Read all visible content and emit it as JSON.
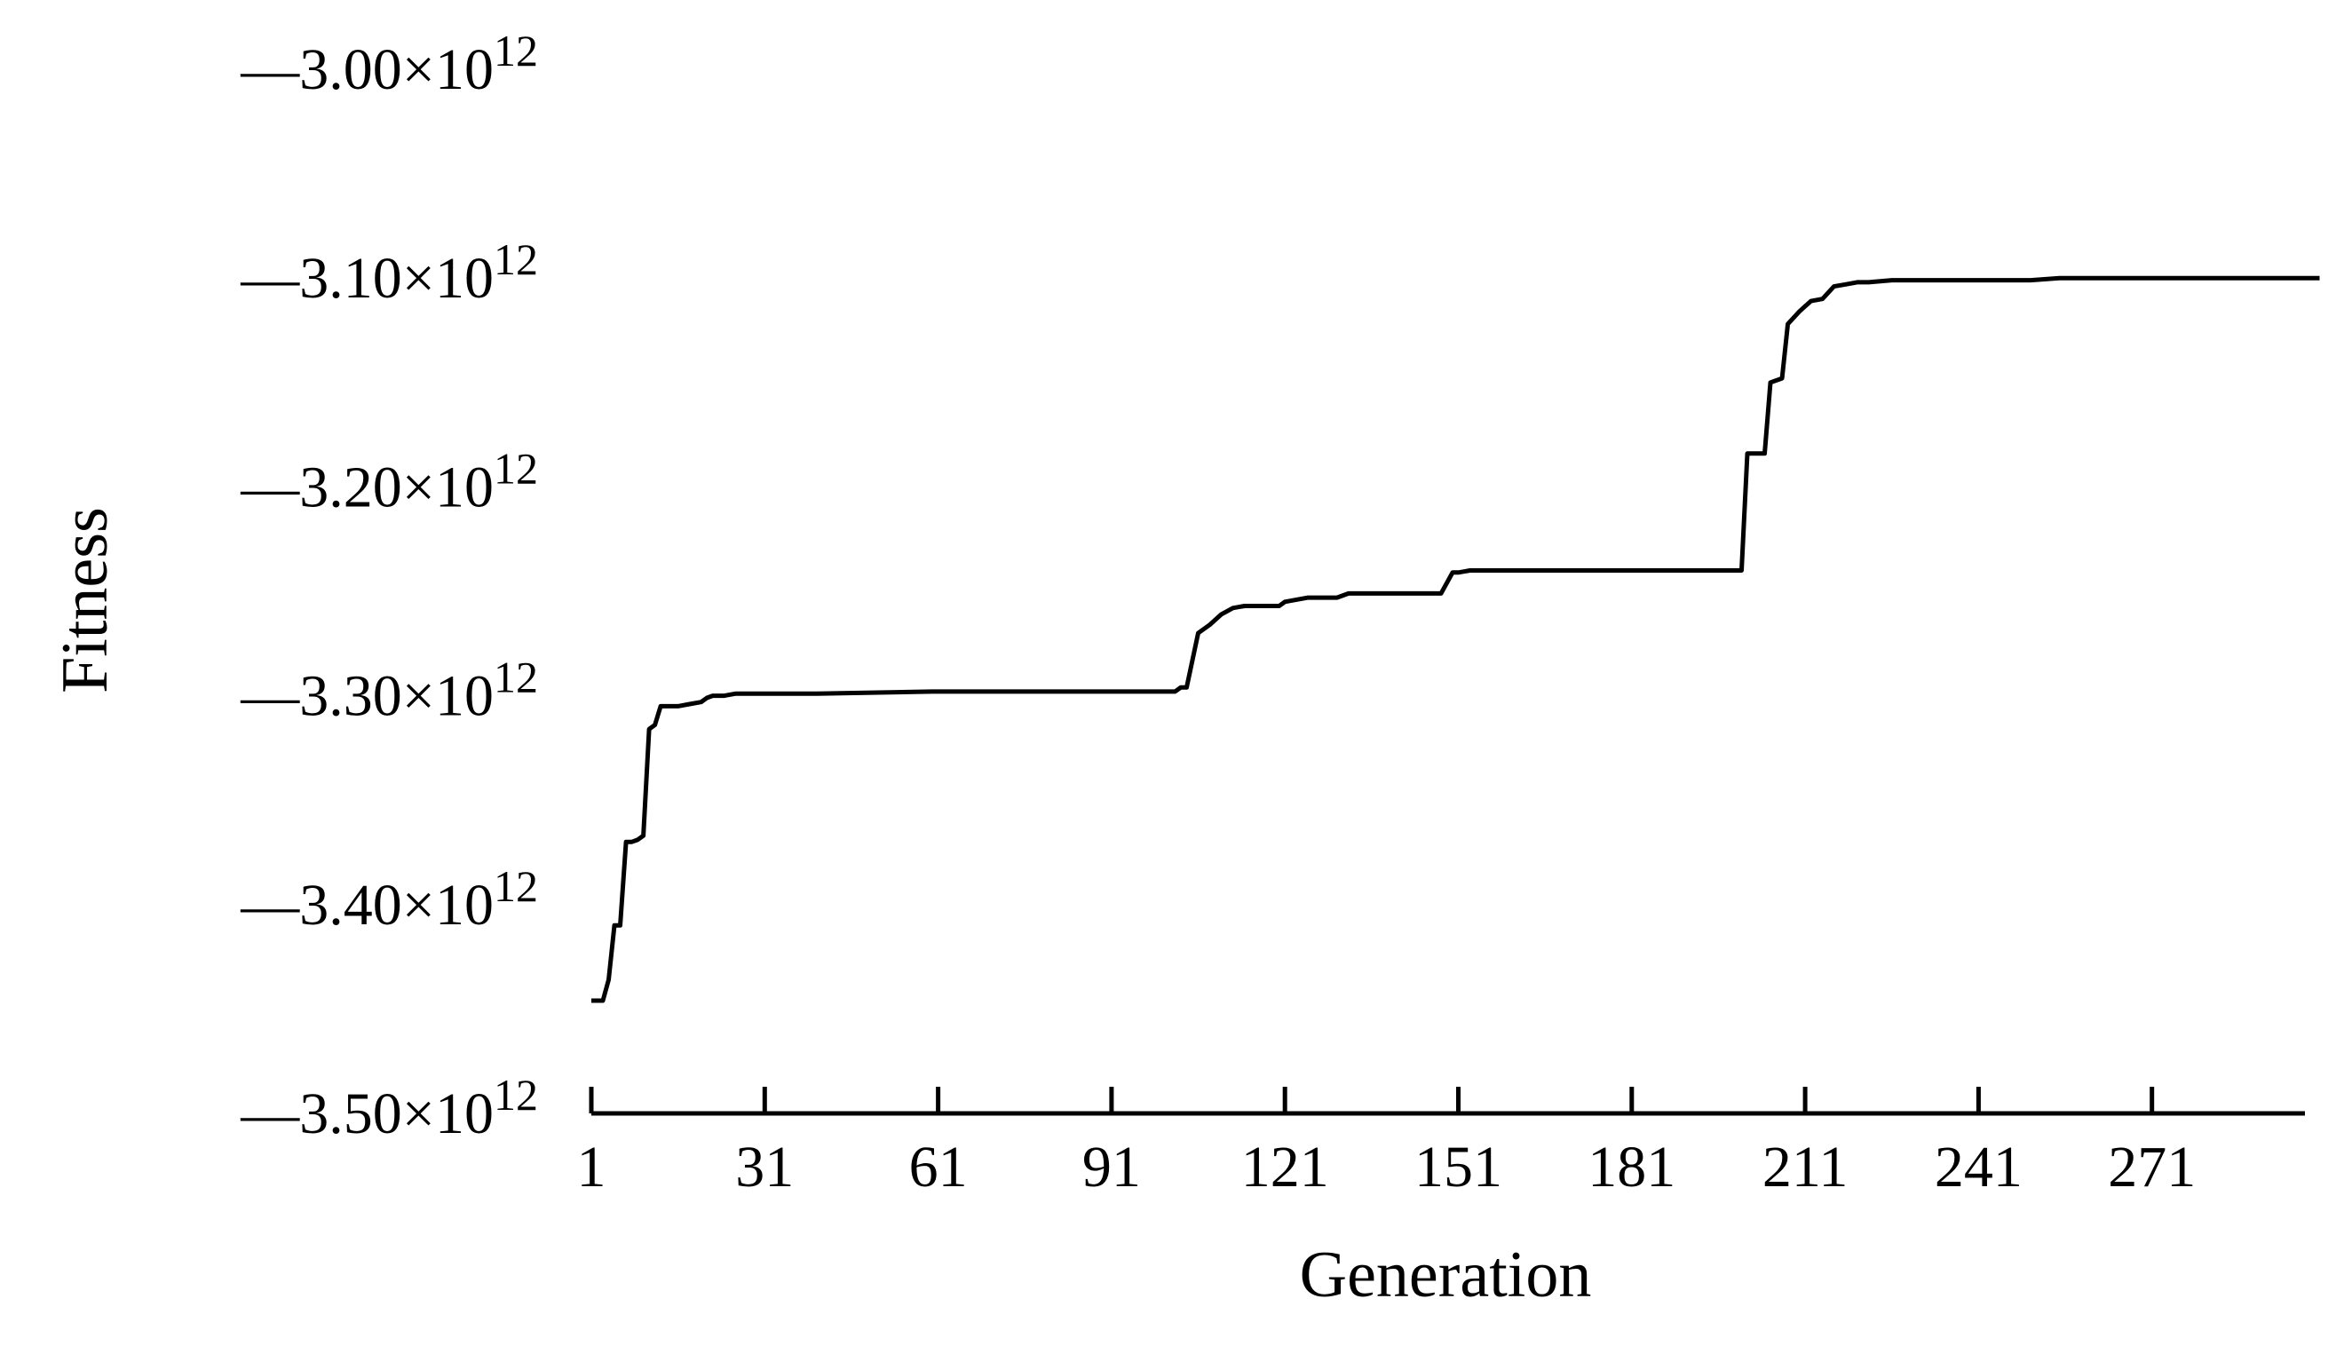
{
  "chart_data": {
    "type": "line",
    "title": "",
    "xlabel": "Generation",
    "ylabel": "Fitness",
    "x_ticks": [
      "1",
      "31",
      "61",
      "91",
      "121",
      "151",
      "181",
      "211",
      "241",
      "271"
    ],
    "y_ticks": [
      {
        "value": -3.0,
        "label": "—3.00×10",
        "exp": "12"
      },
      {
        "value": -3.1,
        "label": "—3.10×10",
        "exp": "12"
      },
      {
        "value": -3.2,
        "label": "—3.20×10",
        "exp": "12"
      },
      {
        "value": -3.3,
        "label": "—3.30×10",
        "exp": "12"
      },
      {
        "value": -3.4,
        "label": "—3.40×10",
        "exp": "12"
      },
      {
        "value": -3.5,
        "label": "—3.50×10",
        "exp": "12"
      }
    ],
    "y_unit_multiplier": "1e12",
    "xlim": [
      1,
      300
    ],
    "ylim": [
      -3.5,
      -3.0
    ],
    "grid": false,
    "line_color": "#000000",
    "series": [
      {
        "x": [
          1,
          3,
          4,
          5,
          6,
          7,
          8,
          9,
          10,
          11,
          12,
          13,
          14,
          15,
          16,
          18,
          20,
          21,
          22,
          24,
          26,
          30,
          40,
          60,
          90,
          102,
          103,
          104,
          106,
          108,
          110,
          112,
          114,
          117,
          120,
          121,
          123,
          125,
          130,
          132,
          134,
          140,
          148,
          150,
          151,
          153,
          160,
          190,
          200,
          201,
          204,
          205,
          207,
          208,
          210,
          212,
          214,
          216,
          218,
          220,
          222,
          226,
          230,
          250,
          255,
          300
        ],
        "y": [
          -3.446,
          -3.446,
          -3.436,
          -3.41,
          -3.41,
          -3.37,
          -3.37,
          -3.369,
          -3.367,
          -3.316,
          -3.314,
          -3.305,
          -3.305,
          -3.305,
          -3.305,
          -3.304,
          -3.303,
          -3.301,
          -3.3,
          -3.3,
          -3.299,
          -3.299,
          -3.299,
          -3.298,
          -3.298,
          -3.298,
          -3.296,
          -3.296,
          -3.27,
          -3.266,
          -3.261,
          -3.258,
          -3.257,
          -3.257,
          -3.257,
          -3.255,
          -3.254,
          -3.253,
          -3.253,
          -3.251,
          -3.251,
          -3.251,
          -3.251,
          -3.241,
          -3.241,
          -3.24,
          -3.24,
          -3.24,
          -3.24,
          -3.184,
          -3.184,
          -3.15,
          -3.148,
          -3.122,
          -3.116,
          -3.111,
          -3.11,
          -3.104,
          -3.103,
          -3.102,
          -3.102,
          -3.101,
          -3.101,
          -3.101,
          -3.1,
          -3.1
        ]
      }
    ]
  }
}
